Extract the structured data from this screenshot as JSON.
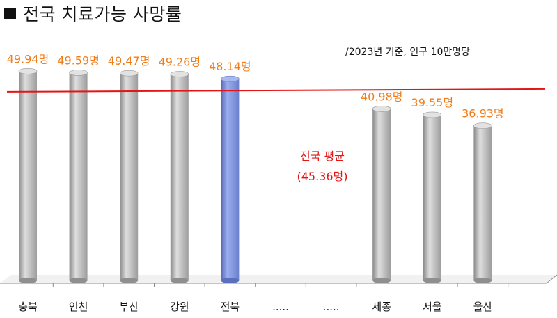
{
  "title": "전국 치료가능 사망률",
  "note": "/2023년 기준, 인구 10만명당",
  "chart_data": {
    "type": "bar",
    "title": "전국 치료가능 사망률",
    "categories": [
      "충북",
      "인천",
      "부산",
      "강원",
      "전북",
      ".....",
      ".....",
      "세종",
      "서울",
      "울산"
    ],
    "values": [
      49.94,
      49.59,
      49.47,
      49.26,
      48.14,
      null,
      null,
      40.98,
      39.55,
      36.93
    ],
    "value_labels": [
      "49.94명",
      "49.59명",
      "49.47명",
      "49.26명",
      "48.14명",
      "",
      "",
      "40.98명",
      "39.55명",
      "36.93명"
    ],
    "highlight_category": "전북",
    "colors": {
      "bar": "#b4b4b4",
      "highlight": "#8096dc",
      "label": "#f07d1a",
      "average_line": "#e31515"
    },
    "reference_line": {
      "value": 45.36,
      "label_line1": "전국 평균",
      "label_line2": "(45.36명)"
    },
    "ylim": [
      0,
      55
    ]
  }
}
